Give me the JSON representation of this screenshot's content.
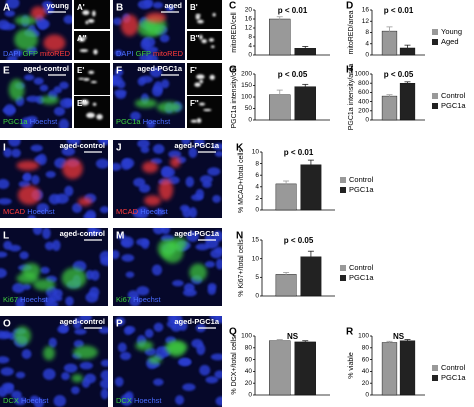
{
  "images": [
    {
      "letter": "A",
      "title": "young",
      "caption": [
        {
          "text": "DAPI",
          "color": "#4a6cff"
        },
        {
          "text": "GFP",
          "color": "#3fcf3f"
        },
        {
          "text": "mitoRED",
          "color": "#ff3b3b"
        }
      ]
    },
    {
      "letter": "A'"
    },
    {
      "letter": "A''"
    },
    {
      "letter": "B",
      "title": "aged",
      "caption": [
        {
          "text": "DAPI",
          "color": "#4a6cff"
        },
        {
          "text": "GFP",
          "color": "#3fcf3f"
        },
        {
          "text": "mitoRED",
          "color": "#ff3b3b"
        }
      ]
    },
    {
      "letter": "B'"
    },
    {
      "letter": "B''"
    },
    {
      "letter": "E",
      "title": "aged-control",
      "caption": [
        {
          "text": "PGC1a",
          "color": "#3fcf3f"
        },
        {
          "text": "Hoechst",
          "color": "#4a6cff"
        }
      ]
    },
    {
      "letter": "E'"
    },
    {
      "letter": "E''"
    },
    {
      "letter": "F",
      "title": "aged-PGC1a",
      "caption": [
        {
          "text": "PGC1a",
          "color": "#3fcf3f"
        },
        {
          "text": "Hoechst",
          "color": "#4a6cff"
        }
      ]
    },
    {
      "letter": "F'"
    },
    {
      "letter": "F''"
    },
    {
      "letter": "I",
      "title": "aged-control",
      "caption": [
        {
          "text": "MCAD",
          "color": "#ff3b3b"
        },
        {
          "text": "Hoechst",
          "color": "#4a6cff"
        }
      ]
    },
    {
      "letter": "J",
      "title": "aged-PGC1a",
      "caption": [
        {
          "text": "MCAD",
          "color": "#ff3b3b"
        },
        {
          "text": "Hoechst",
          "color": "#4a6cff"
        }
      ]
    },
    {
      "letter": "L",
      "title": "aged-control",
      "caption": [
        {
          "text": "Ki67",
          "color": "#3fcf3f"
        },
        {
          "text": "Hoechst",
          "color": "#4a6cff"
        }
      ]
    },
    {
      "letter": "M",
      "title": "aged-PGC1a",
      "caption": [
        {
          "text": "Ki67",
          "color": "#3fcf3f"
        },
        {
          "text": "Hoechst",
          "color": "#4a6cff"
        }
      ]
    },
    {
      "letter": "O",
      "title": "aged-control",
      "caption": [
        {
          "text": "DCX",
          "color": "#3fcf3f"
        },
        {
          "text": "Hoechst",
          "color": "#4a6cff"
        }
      ]
    },
    {
      "letter": "P",
      "title": "aged-PGC1a",
      "caption": [
        {
          "text": "DCX",
          "color": "#3fcf3f"
        },
        {
          "text": "Hoechst",
          "color": "#4a6cff"
        }
      ]
    }
  ],
  "chart_data": [
    {
      "type": "bar",
      "letter": "C",
      "y_label": "mitoRED/cell",
      "annotation": "p < 0.01",
      "ylim": [
        0,
        20
      ],
      "yticks": [
        0,
        4,
        8,
        12,
        16,
        20
      ],
      "series": [
        {
          "color": "#999999",
          "values": [
            16
          ],
          "errors": [
            1
          ]
        },
        {
          "color": "#222222",
          "values": [
            3
          ],
          "errors": [
            0.8
          ]
        }
      ]
    },
    {
      "type": "bar",
      "letter": "D",
      "y_label": "mitoRED/area",
      "annotation": "p < 0.01",
      "ylim": [
        0,
        16
      ],
      "yticks": [
        0,
        4,
        8,
        12,
        16
      ],
      "series": [
        {
          "name": "Young",
          "color": "#999999",
          "values": [
            8.5
          ],
          "errors": [
            1.5
          ]
        },
        {
          "name": "Aged",
          "color": "#222222",
          "values": [
            2.5
          ],
          "errors": [
            1
          ]
        }
      ]
    },
    {
      "type": "bar",
      "letter": "G",
      "y_label": "PGC1a intensity/cell",
      "annotation": "p < 0.05",
      "ylim": [
        0,
        200
      ],
      "yticks": [
        0,
        50,
        100,
        150,
        200
      ],
      "series": [
        {
          "color": "#999999",
          "values": [
            110
          ],
          "errors": [
            20
          ]
        },
        {
          "color": "#222222",
          "values": [
            145
          ],
          "errors": [
            10
          ]
        }
      ]
    },
    {
      "type": "bar",
      "letter": "H",
      "y_label": "PGC1a intensity/area",
      "annotation": "p < 0.05",
      "ylim": [
        0,
        1000
      ],
      "yticks": [
        0,
        200,
        400,
        600,
        800,
        1000
      ],
      "series": [
        {
          "name": "Control",
          "color": "#999999",
          "values": [
            520
          ],
          "errors": [
            30
          ]
        },
        {
          "name": "PGC1a",
          "color": "#222222",
          "values": [
            800
          ],
          "errors": [
            30
          ]
        }
      ]
    },
    {
      "type": "bar",
      "letter": "K",
      "y_label": "% MCAD+/total cells",
      "annotation": "p < 0.01",
      "ylim": [
        0,
        10
      ],
      "yticks": [
        0,
        2,
        4,
        6,
        8,
        10
      ],
      "series": [
        {
          "name": "Control",
          "color": "#999999",
          "values": [
            4.5
          ],
          "errors": [
            0.5
          ]
        },
        {
          "name": "PGC1a",
          "color": "#222222",
          "values": [
            7.8
          ],
          "errors": [
            0.8
          ]
        }
      ]
    },
    {
      "type": "bar",
      "letter": "N",
      "y_label": "% Ki67+/total cells",
      "annotation": "p < 0.05",
      "ylim": [
        0,
        15
      ],
      "yticks": [
        0,
        5,
        10,
        15
      ],
      "series": [
        {
          "name": "Control",
          "color": "#999999",
          "values": [
            5.8
          ],
          "errors": [
            0.5
          ]
        },
        {
          "name": "PGC1a",
          "color": "#222222",
          "values": [
            10.5
          ],
          "errors": [
            1.5
          ]
        }
      ]
    },
    {
      "type": "bar",
      "letter": "Q",
      "y_label": "% DCX+/total cells",
      "annotation": "NS",
      "ylim": [
        0,
        100
      ],
      "yticks": [
        0,
        20,
        40,
        60,
        80,
        100
      ],
      "series": [
        {
          "color": "#999999",
          "values": [
            92
          ],
          "errors": [
            2
          ]
        },
        {
          "color": "#222222",
          "values": [
            90
          ],
          "errors": [
            2
          ]
        }
      ]
    },
    {
      "type": "bar",
      "letter": "R",
      "y_label": "% viable",
      "annotation": "NS",
      "ylim": [
        0,
        100
      ],
      "yticks": [
        0,
        20,
        40,
        60,
        80,
        100
      ],
      "series": [
        {
          "name": "Control",
          "color": "#999999",
          "values": [
            89
          ],
          "errors": [
            2
          ]
        },
        {
          "name": "PGC1a",
          "color": "#222222",
          "values": [
            92
          ],
          "errors": [
            2
          ]
        }
      ]
    }
  ]
}
